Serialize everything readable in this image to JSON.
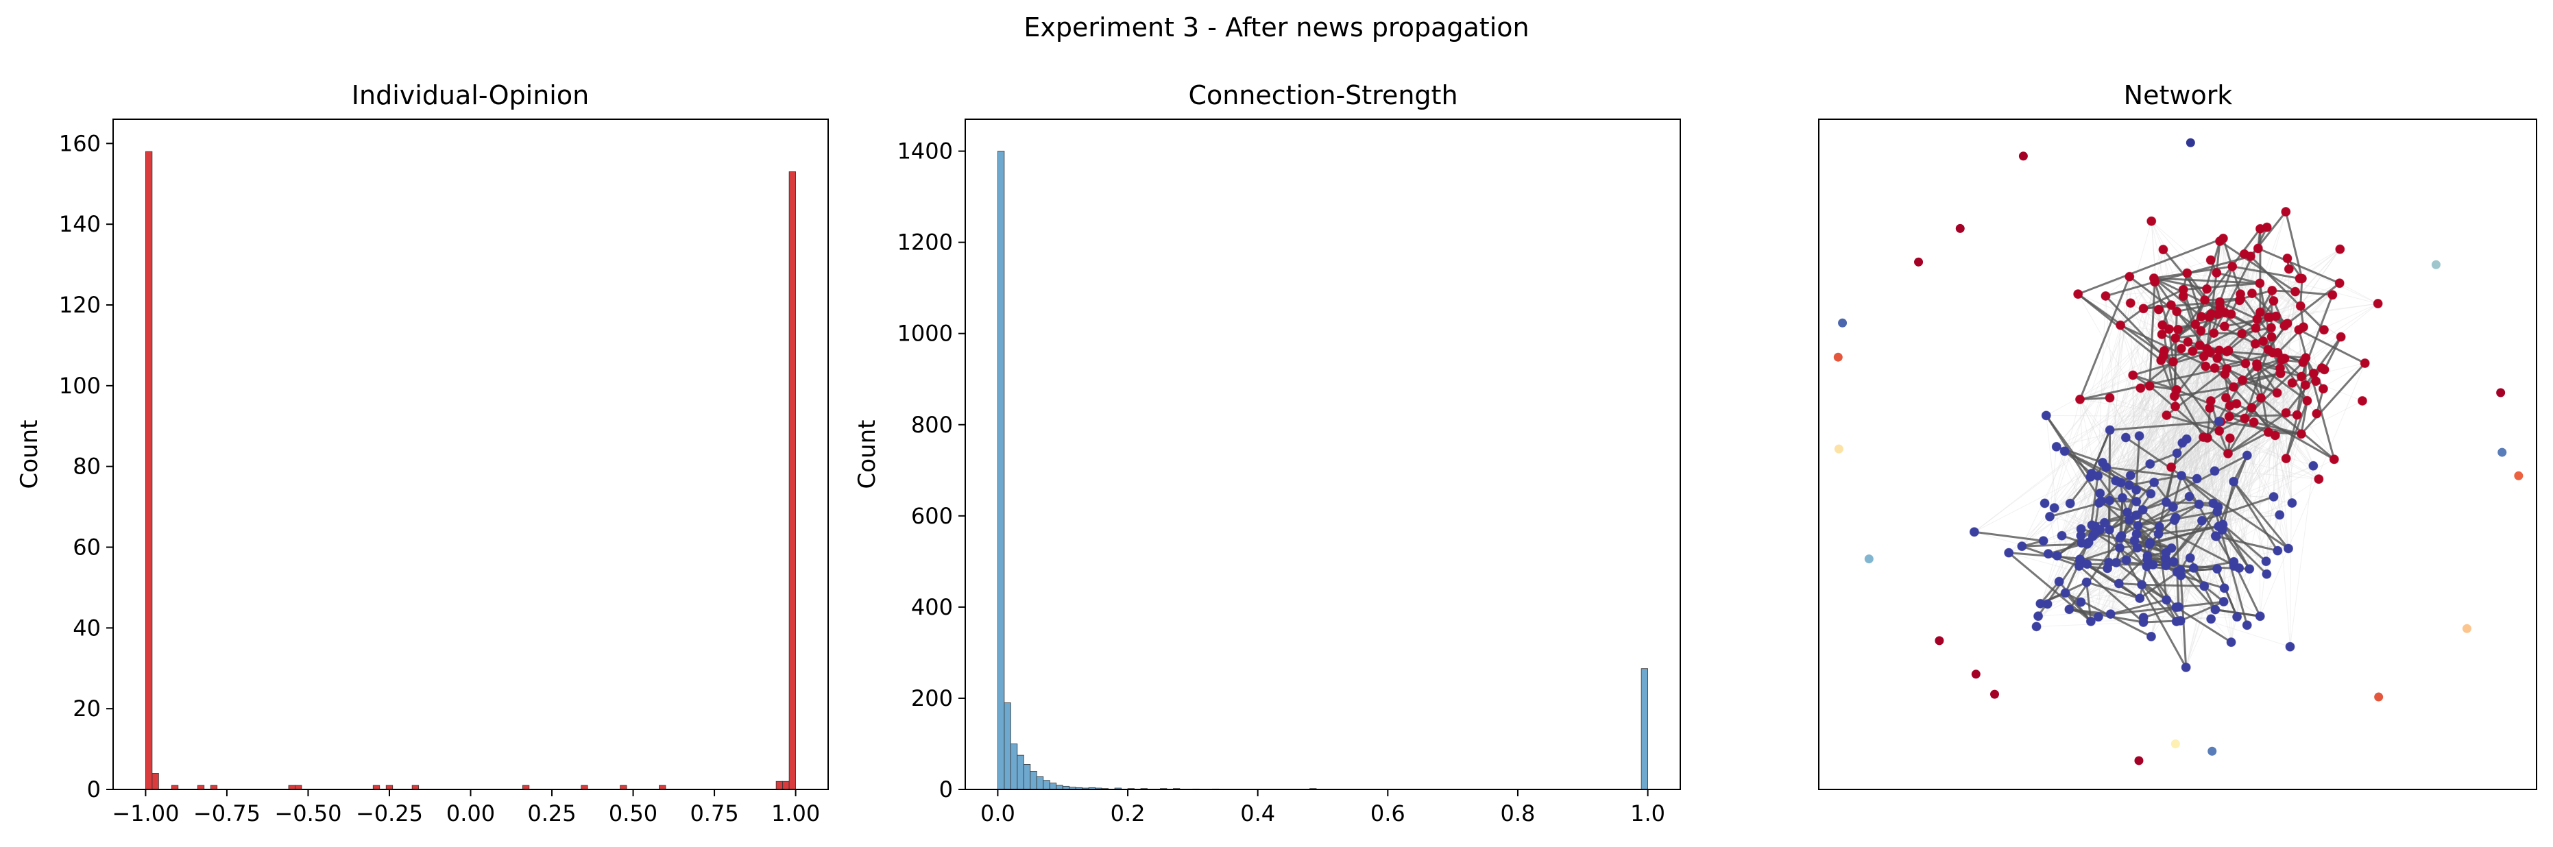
{
  "figure": {
    "suptitle": "Experiment 3 - After news propagation"
  },
  "chart_data": [
    {
      "type": "bar",
      "title": "Individual-Opinion",
      "xlabel": "",
      "ylabel": "Count",
      "xlim": [
        -1.1,
        1.1
      ],
      "ylim": [
        0,
        166
      ],
      "xticks": [
        -1.0,
        -0.75,
        -0.5,
        -0.25,
        0.0,
        0.25,
        0.5,
        0.75,
        1.0
      ],
      "xtick_labels": [
        "−1.00",
        "−0.75",
        "−0.50",
        "−0.25",
        "0.00",
        "0.25",
        "0.50",
        "0.75",
        "1.00"
      ],
      "yticks": [
        0,
        20,
        40,
        60,
        80,
        100,
        120,
        140,
        160
      ],
      "ytick_labels": [
        "0",
        "20",
        "40",
        "60",
        "80",
        "100",
        "120",
        "140",
        "160"
      ],
      "bin_width": 0.02,
      "color": "#d62728",
      "bins": [
        {
          "x": -1.0,
          "count": 158
        },
        {
          "x": -0.98,
          "count": 4
        },
        {
          "x": -0.92,
          "count": 1
        },
        {
          "x": -0.84,
          "count": 1
        },
        {
          "x": -0.8,
          "count": 1
        },
        {
          "x": -0.56,
          "count": 1
        },
        {
          "x": -0.54,
          "count": 1
        },
        {
          "x": -0.3,
          "count": 1
        },
        {
          "x": -0.26,
          "count": 1
        },
        {
          "x": -0.18,
          "count": 1
        },
        {
          "x": 0.16,
          "count": 1
        },
        {
          "x": 0.34,
          "count": 1
        },
        {
          "x": 0.46,
          "count": 1
        },
        {
          "x": 0.58,
          "count": 1
        },
        {
          "x": 0.94,
          "count": 2
        },
        {
          "x": 0.96,
          "count": 2
        },
        {
          "x": 0.98,
          "count": 153
        }
      ]
    },
    {
      "type": "bar",
      "title": "Connection-Strength",
      "xlabel": "",
      "ylabel": "Count",
      "xlim": [
        -0.05,
        1.05
      ],
      "ylim": [
        0,
        1470
      ],
      "xticks": [
        0.0,
        0.2,
        0.4,
        0.6,
        0.8,
        1.0
      ],
      "xtick_labels": [
        "0.0",
        "0.2",
        "0.4",
        "0.6",
        "0.8",
        "1.0"
      ],
      "yticks": [
        0,
        200,
        400,
        600,
        800,
        1000,
        1200,
        1400
      ],
      "ytick_labels": [
        "0",
        "200",
        "400",
        "600",
        "800",
        "1000",
        "1200",
        "1400"
      ],
      "bin_width": 0.01,
      "color": "#5f9fc9",
      "bins": [
        {
          "x": 0.0,
          "count": 1400
        },
        {
          "x": 0.01,
          "count": 190
        },
        {
          "x": 0.02,
          "count": 100
        },
        {
          "x": 0.03,
          "count": 75
        },
        {
          "x": 0.04,
          "count": 55
        },
        {
          "x": 0.05,
          "count": 40
        },
        {
          "x": 0.06,
          "count": 28
        },
        {
          "x": 0.07,
          "count": 20
        },
        {
          "x": 0.08,
          "count": 14
        },
        {
          "x": 0.09,
          "count": 9
        },
        {
          "x": 0.1,
          "count": 7
        },
        {
          "x": 0.11,
          "count": 5
        },
        {
          "x": 0.12,
          "count": 4
        },
        {
          "x": 0.13,
          "count": 3
        },
        {
          "x": 0.14,
          "count": 4
        },
        {
          "x": 0.15,
          "count": 3
        },
        {
          "x": 0.16,
          "count": 2
        },
        {
          "x": 0.18,
          "count": 3
        },
        {
          "x": 0.2,
          "count": 2
        },
        {
          "x": 0.22,
          "count": 2
        },
        {
          "x": 0.25,
          "count": 2
        },
        {
          "x": 0.27,
          "count": 2
        },
        {
          "x": 0.3,
          "count": 1
        },
        {
          "x": 0.33,
          "count": 1
        },
        {
          "x": 0.48,
          "count": 2
        },
        {
          "x": 0.99,
          "count": 265
        }
      ]
    },
    {
      "type": "scatter",
      "title": "Network",
      "description_colormap": "RdYlBu_r",
      "xlim": [
        0,
        1
      ],
      "ylim": [
        0,
        1
      ],
      "node_color_scale": {
        "-1": "#313695",
        "0": "#ffffbf",
        "1": "#a50026"
      },
      "nodes": [
        {
          "x": 0.285,
          "y": 0.945,
          "c": 1.0,
          "outlier": true
        },
        {
          "x": 0.197,
          "y": 0.837,
          "c": 1.0,
          "outlier": true
        },
        {
          "x": 0.139,
          "y": 0.787,
          "c": 1.0,
          "outlier": true
        },
        {
          "x": 0.033,
          "y": 0.696,
          "c": -0.8,
          "outlier": true
        },
        {
          "x": 0.027,
          "y": 0.645,
          "c": 0.6,
          "outlier": true
        },
        {
          "x": 0.028,
          "y": 0.508,
          "c": 0.1,
          "outlier": true
        },
        {
          "x": 0.07,
          "y": 0.344,
          "c": -0.45,
          "outlier": true
        },
        {
          "x": 0.168,
          "y": 0.222,
          "c": 1.0,
          "outlier": true
        },
        {
          "x": 0.219,
          "y": 0.172,
          "c": 1.0,
          "outlier": true
        },
        {
          "x": 0.245,
          "y": 0.142,
          "c": 1.0,
          "outlier": true
        },
        {
          "x": 0.446,
          "y": 0.043,
          "c": 1.0,
          "outlier": true
        },
        {
          "x": 0.497,
          "y": 0.068,
          "c": 0.05,
          "outlier": true
        },
        {
          "x": 0.548,
          "y": 0.057,
          "c": -0.7,
          "outlier": true
        },
        {
          "x": 0.518,
          "y": 0.965,
          "c": -1.0,
          "outlier": true
        },
        {
          "x": 0.86,
          "y": 0.783,
          "c": -0.35,
          "outlier": true
        },
        {
          "x": 0.95,
          "y": 0.592,
          "c": 1.0,
          "outlier": true
        },
        {
          "x": 0.952,
          "y": 0.503,
          "c": -0.7,
          "outlier": true
        },
        {
          "x": 0.975,
          "y": 0.468,
          "c": 0.55,
          "outlier": true
        },
        {
          "x": 0.903,
          "y": 0.24,
          "c": 0.2,
          "outlier": true
        },
        {
          "x": 0.78,
          "y": 0.138,
          "c": 0.6,
          "outlier": true
        }
      ],
      "clusters": [
        {
          "opinion": 1,
          "color": "#b40426",
          "count": 160,
          "center": [
            0.585,
            0.665
          ],
          "spread": [
            0.085,
            0.08
          ]
        },
        {
          "opinion": -1,
          "color": "#3b3fa0",
          "count": 158,
          "center": [
            0.455,
            0.365
          ],
          "spread": [
            0.095,
            0.075
          ]
        }
      ]
    }
  ]
}
